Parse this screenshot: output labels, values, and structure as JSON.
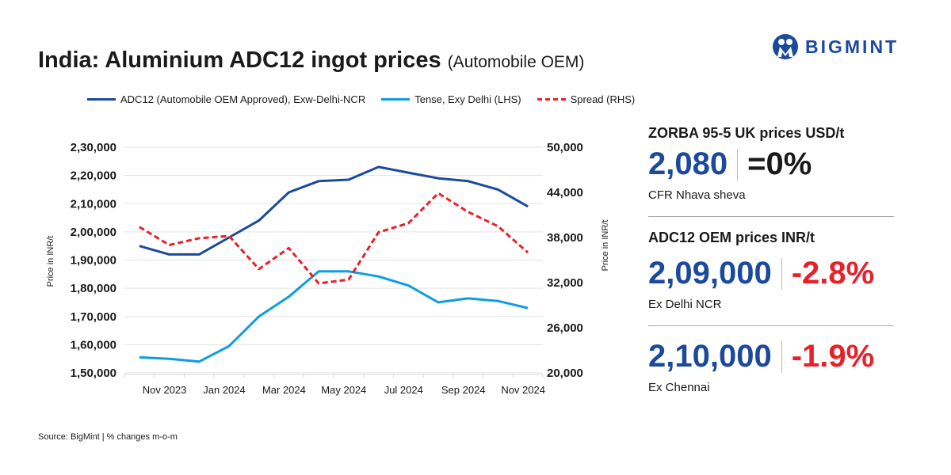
{
  "title": "India: Aluminium ADC12 ingot prices",
  "subtitle": "(Automobile OEM)",
  "brand": "BIGMINT",
  "source": "Source: BigMint | % changes m-o-m",
  "colors": {
    "adc12": "#1b4a9c",
    "tense": "#0b9ee0",
    "spread": "#e8202a",
    "positive_text": "#1b4a9c",
    "negative_text": "#e8202a",
    "neutral_text": "#1a1a1a"
  },
  "panel": {
    "zorba": {
      "heading": "ZORBA 95-5 UK prices USD/t",
      "value": "2,080",
      "change": "=0%",
      "note": "CFR Nhava sheva"
    },
    "adc12": {
      "heading": "ADC12 OEM prices INR/t",
      "delhi": {
        "value": "2,09,000",
        "change": "-2.8%",
        "note": "Ex Delhi NCR"
      },
      "chennai": {
        "value": "2,10,000",
        "change": "-1.9%",
        "note": "Ex Chennai"
      }
    }
  },
  "chart_data": {
    "type": "line",
    "x": [
      "Oct 2023",
      "Nov 2023",
      "Dec 2023",
      "Jan 2024",
      "Feb 2024",
      "Mar 2024",
      "Apr 2024",
      "May 2024",
      "Jun 2024",
      "Jul 2024",
      "Aug 2024",
      "Sep 2024",
      "Oct 2024",
      "Nov 2024"
    ],
    "x_tick_labels": [
      "Nov 2023",
      "Jan 2024",
      "Mar 2024",
      "May 2024",
      "Jul 2024",
      "Sep 2024",
      "Nov 2024"
    ],
    "ylabel": "Price in INR/t",
    "y2label": "Price in INR/t",
    "ylim": [
      150000,
      230000
    ],
    "y2lim": [
      20000,
      50000
    ],
    "y_tick_labels": [
      "1,50,000",
      "1,60,000",
      "1,70,000",
      "1,80,000",
      "1,90,000",
      "2,00,000",
      "2,10,000",
      "2,20,000",
      "2,30,000"
    ],
    "y2_tick_labels": [
      "20,000",
      "26,000",
      "32,000",
      "38,000",
      "44,000",
      "50,000"
    ],
    "grid": true,
    "legend": "top",
    "series": [
      {
        "name": "ADC12 (Automobile OEM Approved), Exw-Delhi-NCR",
        "axis": "left",
        "style": "solid",
        "color": "#1b4a9c",
        "values": [
          195000,
          192000,
          192000,
          198000,
          204000,
          214000,
          218000,
          218500,
          223000,
          221000,
          219000,
          218000,
          215000,
          209000
        ]
      },
      {
        "name": "Tense, Exy Delhi (LHS)",
        "axis": "left",
        "style": "solid",
        "color": "#0b9ee0",
        "values": [
          155500,
          155000,
          154000,
          159500,
          170000,
          177000,
          186000,
          186000,
          184200,
          181000,
          175000,
          176400,
          175500,
          173000
        ]
      },
      {
        "name": "Spread (RHS)",
        "axis": "right",
        "style": "dashed",
        "color": "#e8202a",
        "values": [
          39400,
          37000,
          37900,
          38200,
          33800,
          36600,
          31900,
          32400,
          38700,
          39900,
          43900,
          41400,
          39500,
          36000
        ]
      }
    ]
  }
}
